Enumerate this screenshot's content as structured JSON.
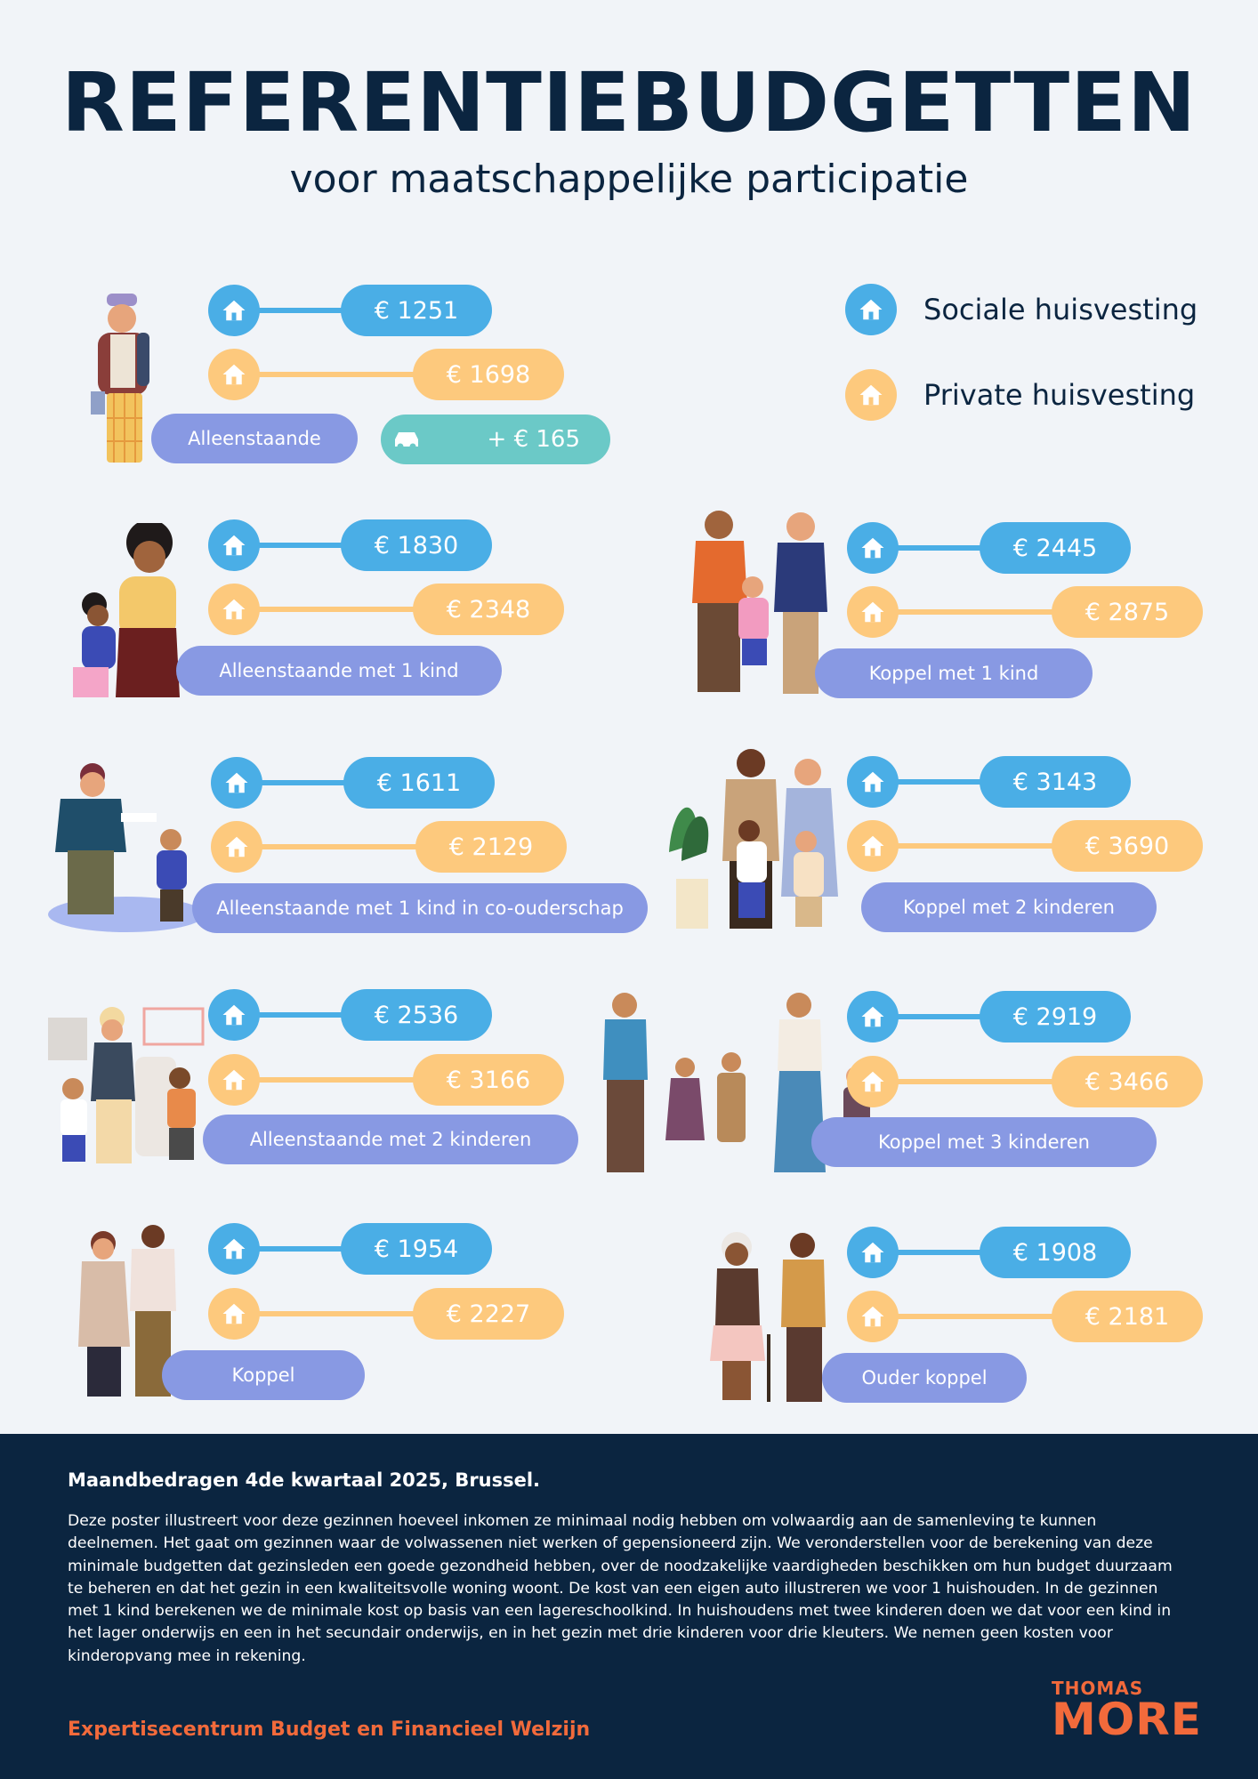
{
  "header": {
    "title": "REFERENTIEBUDGETTEN",
    "subtitle": "voor maatschappelijke participatie"
  },
  "legend": {
    "social": "Sociale huisvesting",
    "private": "Private huisvesting",
    "social_icon": "house-icon",
    "private_icon": "house-icon"
  },
  "colors": {
    "social": "#4aaee6",
    "private": "#fdc97d",
    "label": "#8899e3",
    "car": "#6bc9c7",
    "navy": "#0b2540",
    "accent": "#f26a3b"
  },
  "households": [
    {
      "label": "Alleenstaande",
      "social": "€ 1251",
      "private": "€ 1698",
      "car_extra": "+ € 165",
      "car_icon": "car-icon"
    },
    {
      "label": "Alleenstaande met 1 kind",
      "social": "€ 1830",
      "private": "€ 2348"
    },
    {
      "label": "Koppel met 1 kind",
      "social": "€ 2445",
      "private": "€ 2875"
    },
    {
      "label": "Alleenstaande met 1 kind in co-ouderschap",
      "social": "€ 1611",
      "private": "€ 2129"
    },
    {
      "label": "Koppel met 2 kinderen",
      "social": "€ 3143",
      "private": "€ 3690"
    },
    {
      "label": "Alleenstaande met 2 kinderen",
      "social": "€ 2536",
      "private": "€ 3166"
    },
    {
      "label": "Koppel met 3 kinderen",
      "social": "€ 2919",
      "private": "€ 3466"
    },
    {
      "label": "Koppel",
      "social": "€ 1954",
      "private": "€ 2227"
    },
    {
      "label": "Ouder koppel",
      "social": "€ 1908",
      "private": "€ 2181"
    }
  ],
  "footer": {
    "heading": "Maandbedragen 4de kwartaal 2025, Brussel.",
    "body": "Deze poster illustreert voor deze gezinnen hoeveel inkomen ze minimaal nodig hebben om volwaardig aan de samenleving te kunnen deelnemen. Het gaat om gezinnen waar de volwassenen niet werken of gepensioneerd zijn. We veronderstellen voor de berekening van deze minimale budgetten dat gezinsleden een goede gezondheid hebben, over de noodzakelijke vaardigheden beschikken om hun budget duurzaam te beheren en dat het gezin in een kwaliteitsvolle woning woont. De kost van een eigen auto illustreren we voor 1 huishouden. In de gezinnen met 1 kind berekenen we de minimale kost op basis van een lagereschoolkind. In huishoudens met twee kinderen doen we dat voor een kind in het lager onderwijs en een in het secundair onderwijs, en in het gezin met drie kinderen voor drie kleuters. We nemen geen kosten voor kinderopvang mee in rekening.",
    "organisation": "Expertisecentrum Budget en Financieel Welzijn",
    "logo_line1": "THOMAS",
    "logo_line2": "MORE"
  }
}
